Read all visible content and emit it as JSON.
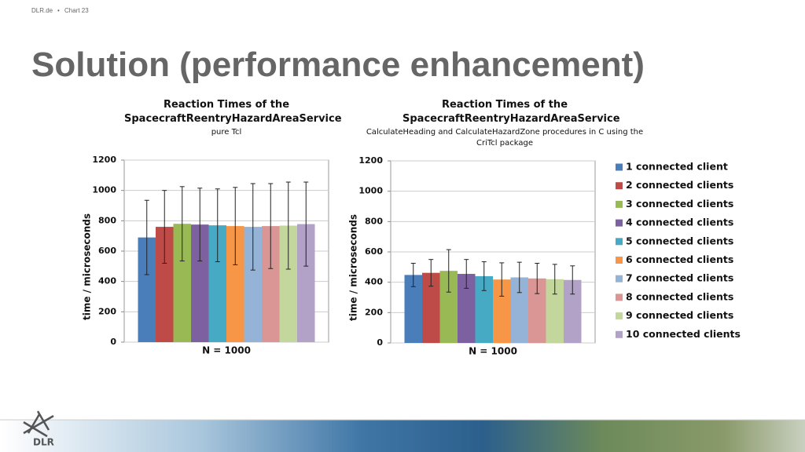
{
  "header": {
    "site": "DLR.de",
    "chart": "Chart 23"
  },
  "title": "Solution (performance enhancement)",
  "logo_text": "DLR",
  "chart_data": [
    {
      "type": "bar",
      "title": "Reaction Times of the SpacecraftReentryHazardAreaService",
      "subtitle": "pure Tcl",
      "x_label": "N = 1000",
      "y_label": "time / microseconds",
      "ylim": [
        0,
        1200
      ],
      "yticks": [
        0,
        200,
        400,
        600,
        800,
        1000,
        1200
      ],
      "grid": true,
      "series": [
        {
          "color": "#4a7ebb",
          "values": [
            690
          ],
          "errors": [
            245
          ]
        },
        {
          "color": "#be4b48",
          "values": [
            760
          ],
          "errors": [
            240
          ]
        },
        {
          "color": "#98b954",
          "values": [
            780
          ],
          "errors": [
            245
          ]
        },
        {
          "color": "#7d60a0",
          "values": [
            775
          ],
          "errors": [
            240
          ]
        },
        {
          "color": "#46aac5",
          "values": [
            770
          ],
          "errors": [
            240
          ]
        },
        {
          "color": "#f79646",
          "values": [
            765
          ],
          "errors": [
            255
          ]
        },
        {
          "color": "#95b3d7",
          "values": [
            760
          ],
          "errors": [
            285
          ]
        },
        {
          "color": "#d99694",
          "values": [
            765
          ],
          "errors": [
            280
          ]
        },
        {
          "color": "#c3d69b",
          "values": [
            768
          ],
          "errors": [
            287
          ]
        },
        {
          "color": "#b3a2c7",
          "values": [
            778
          ],
          "errors": [
            277
          ]
        }
      ]
    },
    {
      "type": "bar",
      "title": "Reaction Times of the SpacecraftReentryHazardAreaService",
      "subtitle": "CalculateHeading and CalculateHazardZone procedures in C using the CriTcl package",
      "x_label": "N = 1000",
      "y_label": "time / microseconds",
      "ylim": [
        0,
        1200
      ],
      "yticks": [
        0,
        200,
        400,
        600,
        800,
        1000,
        1200
      ],
      "grid": true,
      "legend": "right",
      "series": [
        {
          "name": "1 connected client",
          "color": "#4a7ebb",
          "values": [
            448
          ],
          "errors": [
            77
          ]
        },
        {
          "name": "2 connected clients",
          "color": "#be4b48",
          "values": [
            462
          ],
          "errors": [
            88
          ]
        },
        {
          "name": "3 connected clients",
          "color": "#98b954",
          "values": [
            475
          ],
          "errors": [
            140
          ]
        },
        {
          "name": "4 connected clients",
          "color": "#7d60a0",
          "values": [
            455
          ],
          "errors": [
            95
          ]
        },
        {
          "name": "5 connected clients",
          "color": "#46aac5",
          "values": [
            440
          ],
          "errors": [
            95
          ]
        },
        {
          "name": "6 connected clients",
          "color": "#f79646",
          "values": [
            418
          ],
          "errors": [
            110
          ]
        },
        {
          "name": "7 connected clients",
          "color": "#95b3d7",
          "values": [
            432
          ],
          "errors": [
            100
          ]
        },
        {
          "name": "8 connected clients",
          "color": "#d99694",
          "values": [
            425
          ],
          "errors": [
            100
          ]
        },
        {
          "name": "9 connected clients",
          "color": "#c3d69b",
          "values": [
            420
          ],
          "errors": [
            98
          ]
        },
        {
          "name": "10 connected clients",
          "color": "#b3a2c7",
          "values": [
            415
          ],
          "errors": [
            93
          ]
        }
      ]
    }
  ]
}
